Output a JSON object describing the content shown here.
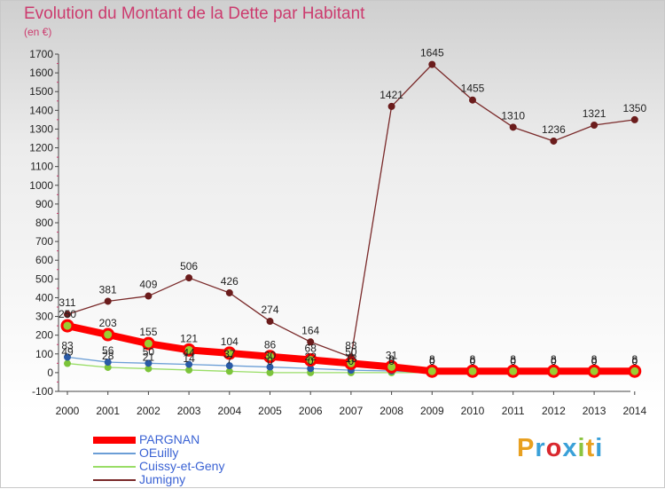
{
  "header": {
    "title": "Evolution du Montant de la Dette par Habitant",
    "subtitle": "(en €)"
  },
  "logo": {
    "text": "Proxiti",
    "colors": [
      "#e8a020",
      "#3aa0d8",
      "#d9282e",
      "#3aa0d8",
      "#8bc43f",
      "#e8a020",
      "#3aa0d8"
    ]
  },
  "chart_data": {
    "type": "line",
    "title": "Evolution du Montant de la Dette par Habitant",
    "subtitle": "(en €)",
    "xlabel": "",
    "ylabel": "",
    "categories": [
      "2000",
      "2001",
      "2002",
      "2003",
      "2004",
      "2005",
      "2006",
      "2007",
      "2008",
      "2009",
      "2010",
      "2011",
      "2012",
      "2013",
      "2014"
    ],
    "ylim": [
      -100,
      1700
    ],
    "yticks": [
      -100,
      0,
      100,
      200,
      300,
      400,
      500,
      600,
      700,
      800,
      900,
      1000,
      1100,
      1200,
      1300,
      1400,
      1500,
      1600,
      1700
    ],
    "grid": false,
    "legend_position": "bottom-left",
    "series": [
      {
        "name": "PARGNAN",
        "color": "#ff0000",
        "values": [
          250,
          203,
          155,
          121,
          104,
          86,
          68,
          50,
          31,
          8,
          8,
          8,
          8,
          8,
          8
        ],
        "labels": [
          "250",
          "203",
          "155",
          "121",
          "104",
          "86",
          "68",
          "50",
          "31",
          "8",
          "8",
          "8",
          "8",
          "8",
          "8"
        ]
      },
      {
        "name": "OEuilly",
        "color": "#6b9ed6",
        "values": [
          83,
          56,
          50,
          44,
          37,
          30,
          22,
          13,
          9,
          0,
          0,
          0,
          0,
          0,
          0
        ],
        "labels": [
          "83",
          "56",
          "50",
          "44",
          "37",
          "30",
          "22",
          "13",
          "9",
          "0",
          "0",
          "0",
          "0",
          "0",
          "0"
        ]
      },
      {
        "name": "Cuissy-et-Geny",
        "color": "#99dd66",
        "values": [
          49,
          28,
          21,
          14,
          7,
          0,
          0,
          0,
          0,
          0,
          0,
          0,
          0,
          0,
          0
        ],
        "labels": [
          "49",
          "28",
          "21",
          "14",
          "7",
          "0",
          "0",
          "0",
          "0",
          "0",
          "0",
          "0",
          "0",
          "0",
          "0"
        ]
      },
      {
        "name": "Jumigny",
        "color": "#7a2a2a",
        "values": [
          311,
          381,
          409,
          506,
          426,
          274,
          164,
          83,
          1421,
          1645,
          1455,
          1310,
          1236,
          1321,
          1350
        ],
        "labels": [
          "311",
          "381",
          "409",
          "506",
          "426",
          "274",
          "164",
          "83",
          "1421",
          "1645",
          "1455",
          "1310",
          "1236",
          "1321",
          "1350"
        ]
      }
    ]
  }
}
